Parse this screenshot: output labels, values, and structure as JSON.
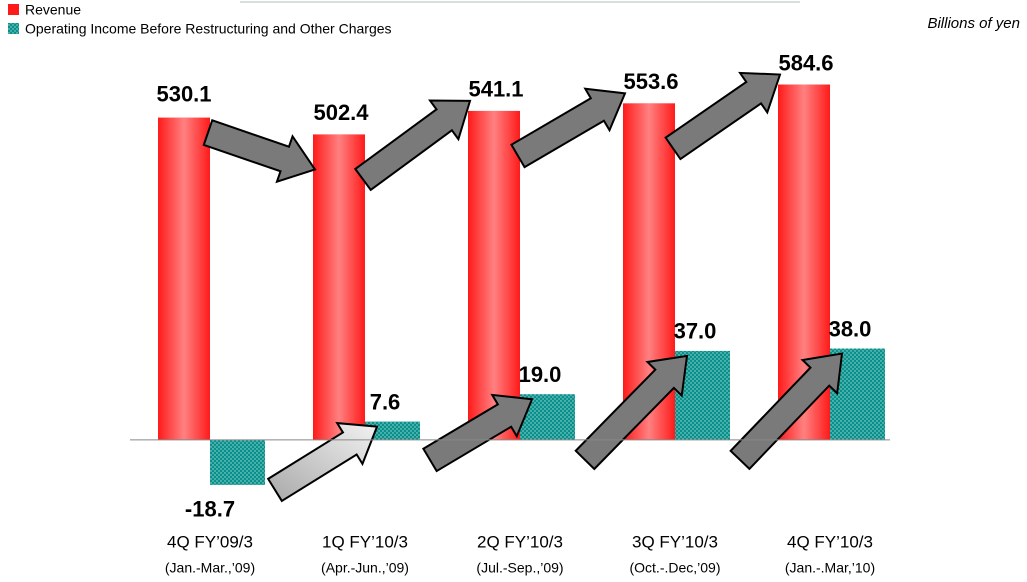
{
  "chart_data": {
    "type": "bar",
    "unit_label": "Billions of yen",
    "categories": [
      "4Q FY’09/3",
      "1Q FY’10/3",
      "2Q FY’10/3",
      "3Q FY’10/3",
      "4Q FY’10/3"
    ],
    "category_periods": [
      "(Jan.-Mar.,’09)",
      "(Apr.-Jun.,’09)",
      "(Jul.-Sep.,’09)",
      "(Oct.-.Dec,’09)",
      "(Jan.-.Mar,’10)"
    ],
    "series": [
      {
        "name": "Revenue",
        "color": "#ff1a1a",
        "values": [
          530.1,
          502.4,
          541.1,
          553.6,
          584.6
        ]
      },
      {
        "name": "Operating Income Before Restructuring and Other Charges",
        "color": "#0b8f8a",
        "axis": "y2",
        "values": [
          -18.7,
          7.6,
          19.0,
          37.0,
          38.0
        ],
        "value_labels": [
          "-18.7",
          "7.6",
          "19.0",
          "37.0",
          "38.0"
        ]
      }
    ],
    "ylim": [
      -100,
      625
    ],
    "y2lim": [
      -25,
      158
    ]
  }
}
